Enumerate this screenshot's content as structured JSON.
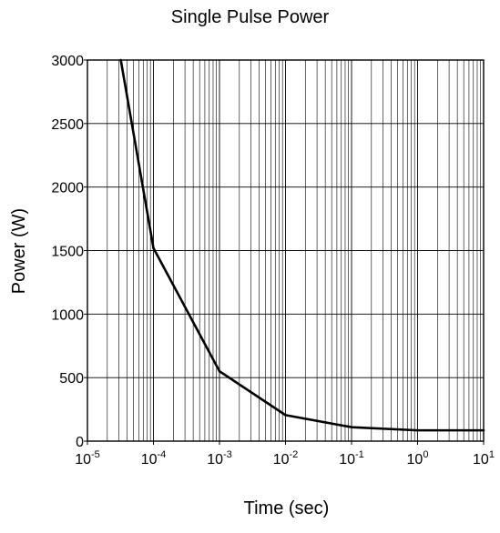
{
  "chart_data": {
    "type": "line",
    "title": "Single Pulse Power",
    "xlabel": "Time (sec)",
    "ylabel": "Power (W)",
    "x_scale": "log",
    "xlim": [
      1e-05,
      10
    ],
    "ylim": [
      0,
      3000
    ],
    "grid": true,
    "x_ticks": [
      {
        "base": "10",
        "exp": "-5",
        "value": 1e-05
      },
      {
        "base": "10",
        "exp": "-4",
        "value": 0.0001
      },
      {
        "base": "10",
        "exp": "-3",
        "value": 0.001
      },
      {
        "base": "10",
        "exp": "-2",
        "value": 0.01
      },
      {
        "base": "10",
        "exp": "-1",
        "value": 0.1
      },
      {
        "base": "10",
        "exp": "0",
        "value": 1
      },
      {
        "base": "10",
        "exp": "1",
        "value": 10
      }
    ],
    "y_ticks": [
      "0",
      "500",
      "1000",
      "1500",
      "2000",
      "2500",
      "3000"
    ],
    "series": [
      {
        "x": [
          3.2e-05,
          0.0001,
          0.001,
          0.01,
          0.1,
          1,
          10
        ],
        "y": [
          3000,
          1520,
          550,
          205,
          110,
          85,
          85
        ]
      }
    ]
  }
}
